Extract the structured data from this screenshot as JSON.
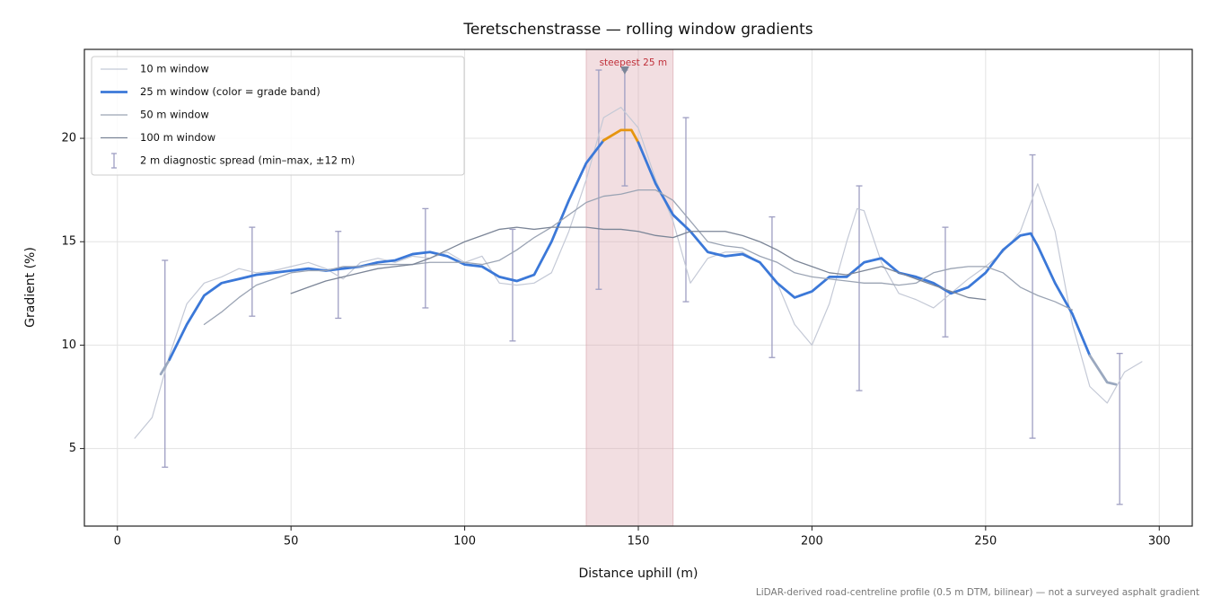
{
  "chart_data": {
    "type": "line",
    "title": "Teretschenstrasse — rolling window gradients",
    "x_label": "Distance uphill (m)",
    "y_label": "Gradient (%)",
    "footnote": "LiDAR-derived road-centreline profile (0.5 m DTM, bilinear) — not a surveyed asphalt gradient",
    "xlim": [
      -9.5,
      309.5
    ],
    "ylim": [
      1.25,
      24.3
    ],
    "xticks": [
      0,
      50,
      100,
      150,
      200,
      250,
      300
    ],
    "yticks": [
      5,
      10,
      15,
      20
    ],
    "grid": true,
    "legend": "upper left",
    "series": [
      {
        "name": "10 m window",
        "color": "#c4c9d6",
        "width": 1.2,
        "x": [
          5,
          10,
          15,
          20,
          25,
          30,
          35,
          40,
          45,
          50,
          55,
          60,
          65,
          70,
          75,
          80,
          85,
          90,
          95,
          100,
          105,
          110,
          115,
          120,
          125,
          130,
          135,
          140,
          145,
          150,
          155,
          160,
          165,
          170,
          175,
          180,
          185,
          190,
          195,
          200,
          205,
          210,
          213,
          215,
          220,
          225,
          230,
          235,
          240,
          245,
          250,
          255,
          260,
          265,
          270,
          275,
          280,
          285,
          290,
          295
        ],
        "values": [
          5.5,
          6.5,
          9.5,
          12.0,
          13.0,
          13.3,
          13.7,
          13.5,
          13.6,
          13.8,
          14.0,
          13.7,
          13.2,
          14.0,
          14.2,
          14.0,
          14.3,
          14.2,
          14.5,
          14.0,
          14.3,
          13.0,
          12.9,
          13.0,
          13.5,
          15.5,
          18.0,
          21.0,
          21.5,
          20.5,
          18.0,
          16.0,
          13.0,
          14.2,
          14.5,
          14.5,
          14.0,
          13.0,
          11.0,
          10.0,
          12.0,
          15.0,
          16.6,
          16.5,
          14.0,
          12.5,
          12.2,
          11.8,
          12.5,
          13.2,
          13.8,
          14.5,
          15.5,
          17.8,
          15.5,
          11.0,
          8.0,
          7.2,
          8.7,
          9.2
        ]
      },
      {
        "name": "25 m window (color = grade band)",
        "color": "#3b78d8",
        "width": 2.8,
        "band_colors": [
          {
            "below": 10,
            "color": "#9aa8bf"
          },
          {
            "below": 20,
            "color": "#3b78d8"
          },
          {
            "color": "#e6950f"
          }
        ],
        "x": [
          12.5,
          15,
          20,
          25,
          30,
          35,
          40,
          45,
          50,
          55,
          60,
          65,
          70,
          75,
          80,
          85,
          90,
          95,
          100,
          105,
          110,
          115,
          120,
          125,
          130,
          135,
          140,
          145,
          148,
          150,
          155,
          160,
          165,
          170,
          175,
          180,
          185,
          190,
          195,
          200,
          205,
          210,
          215,
          220,
          225,
          230,
          235,
          240,
          245,
          250,
          255,
          260,
          263,
          265,
          270,
          275,
          280,
          285,
          287.5
        ],
        "values": [
          8.6,
          9.3,
          11.0,
          12.4,
          13.0,
          13.2,
          13.4,
          13.5,
          13.6,
          13.7,
          13.6,
          13.7,
          13.8,
          14.0,
          14.1,
          14.4,
          14.5,
          14.3,
          13.9,
          13.8,
          13.3,
          13.1,
          13.4,
          15.0,
          17.0,
          18.8,
          19.9,
          20.4,
          20.4,
          19.8,
          17.8,
          16.3,
          15.5,
          14.5,
          14.3,
          14.4,
          14.0,
          13.0,
          12.3,
          12.6,
          13.3,
          13.3,
          14.0,
          14.2,
          13.5,
          13.3,
          13.0,
          12.5,
          12.8,
          13.5,
          14.6,
          15.3,
          15.4,
          14.8,
          13.0,
          11.5,
          9.5,
          8.2,
          8.1
        ]
      },
      {
        "name": "50 m window",
        "color": "#9ba4b4",
        "width": 1.3,
        "x": [
          25,
          30,
          35,
          40,
          45,
          50,
          55,
          60,
          65,
          70,
          75,
          80,
          85,
          90,
          95,
          100,
          105,
          110,
          115,
          120,
          125,
          130,
          135,
          140,
          145,
          150,
          155,
          160,
          165,
          170,
          175,
          180,
          185,
          190,
          195,
          200,
          205,
          210,
          215,
          220,
          225,
          230,
          235,
          240,
          245,
          250,
          255,
          260,
          265,
          270,
          275
        ],
        "values": [
          11.0,
          11.6,
          12.3,
          12.9,
          13.2,
          13.5,
          13.6,
          13.6,
          13.8,
          13.8,
          13.9,
          13.9,
          13.9,
          14.0,
          14.0,
          14.0,
          13.9,
          14.1,
          14.6,
          15.2,
          15.7,
          16.3,
          16.9,
          17.2,
          17.3,
          17.5,
          17.5,
          17.0,
          16.0,
          15.0,
          14.8,
          14.7,
          14.3,
          14.0,
          13.5,
          13.3,
          13.2,
          13.1,
          13.0,
          13.0,
          12.9,
          13.0,
          13.5,
          13.7,
          13.8,
          13.8,
          13.5,
          12.8,
          12.4,
          12.1,
          11.7
        ]
      },
      {
        "name": "100 m window",
        "color": "#7b8597",
        "width": 1.3,
        "x": [
          50,
          55,
          60,
          65,
          70,
          75,
          80,
          85,
          90,
          95,
          100,
          105,
          110,
          115,
          120,
          125,
          130,
          135,
          140,
          145,
          150,
          155,
          160,
          165,
          170,
          175,
          180,
          185,
          190,
          195,
          200,
          205,
          210,
          215,
          220,
          225,
          230,
          235,
          240,
          245,
          250
        ],
        "values": [
          12.5,
          12.8,
          13.1,
          13.3,
          13.5,
          13.7,
          13.8,
          13.9,
          14.2,
          14.6,
          15.0,
          15.3,
          15.6,
          15.7,
          15.6,
          15.7,
          15.7,
          15.7,
          15.6,
          15.6,
          15.5,
          15.3,
          15.2,
          15.5,
          15.5,
          15.5,
          15.3,
          15.0,
          14.6,
          14.1,
          13.8,
          13.5,
          13.4,
          13.6,
          13.8,
          13.5,
          13.2,
          12.9,
          12.6,
          12.3,
          12.2
        ]
      }
    ],
    "error_bars": {
      "name": "2 m diagnostic spread (min–max, ±12 m)",
      "color": "#9e9ec2",
      "x": [
        13.7,
        38.8,
        63.6,
        88.7,
        113.8,
        138.6,
        146.1,
        163.7,
        188.5,
        213.6,
        238.4,
        263.5,
        288.6
      ],
      "min": [
        4.1,
        11.4,
        11.3,
        11.8,
        10.2,
        12.7,
        17.7,
        12.1,
        9.4,
        7.8,
        10.4,
        5.5,
        2.3
      ],
      "max": [
        14.1,
        15.7,
        15.5,
        16.6,
        15.6,
        23.3,
        23.3,
        21.0,
        16.2,
        17.7,
        15.7,
        19.2,
        9.6
      ]
    },
    "highlight": {
      "label": "steepest 25 m",
      "span": [
        135,
        160
      ],
      "x": 146.1,
      "y": 23.3,
      "color": "#d9a0a8",
      "text_color": "#c0303a"
    }
  }
}
